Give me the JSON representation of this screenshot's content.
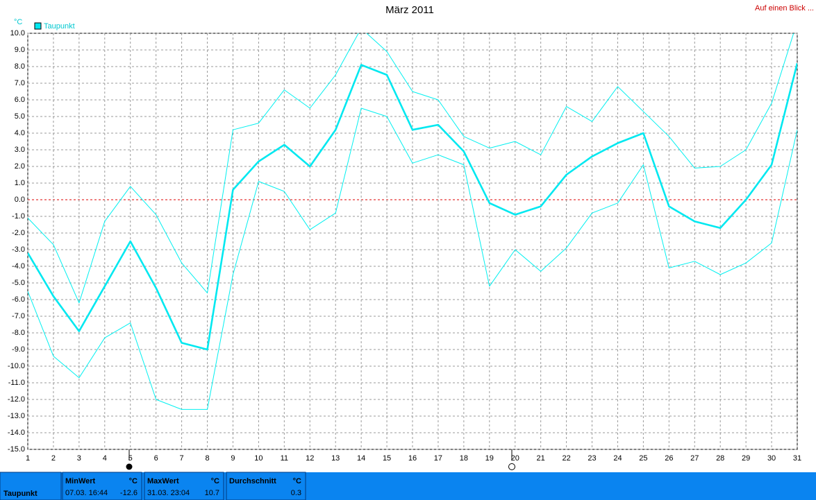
{
  "chart_data": {
    "type": "line",
    "title": "März 2011",
    "ylabel": "°C",
    "link": "Auf einen Blick ...",
    "x": [
      1,
      2,
      3,
      4,
      5,
      6,
      7,
      8,
      9,
      10,
      11,
      12,
      13,
      14,
      15,
      16,
      17,
      18,
      19,
      20,
      21,
      22,
      23,
      24,
      25,
      26,
      27,
      28,
      29,
      30,
      31
    ],
    "xlim": [
      1,
      31
    ],
    "xticks": [
      1,
      2,
      3,
      4,
      5,
      6,
      7,
      8,
      9,
      10,
      11,
      12,
      13,
      14,
      15,
      16,
      17,
      18,
      19,
      20,
      21,
      22,
      23,
      24,
      25,
      26,
      27,
      28,
      29,
      30,
      31
    ],
    "ylim": [
      -15,
      10
    ],
    "yticks": [
      {
        "value": 10,
        "label": "10.0"
      },
      {
        "value": 9,
        "label": "9.0"
      },
      {
        "value": 8,
        "label": "8.0"
      },
      {
        "value": 7,
        "label": "7.0"
      },
      {
        "value": 6,
        "label": "6.0"
      },
      {
        "value": 5,
        "label": "5.0"
      },
      {
        "value": 4,
        "label": "4.0"
      },
      {
        "value": 3,
        "label": "3.0"
      },
      {
        "value": 2,
        "label": "2.0"
      },
      {
        "value": 1,
        "label": "1.0"
      },
      {
        "value": 0,
        "label": "0.0"
      },
      {
        "value": -1,
        "label": "-1.0"
      },
      {
        "value": -2,
        "label": "-2.0"
      },
      {
        "value": -3,
        "label": "-3.0"
      },
      {
        "value": -4,
        "label": "-4.0"
      },
      {
        "value": -5,
        "label": "-5.0"
      },
      {
        "value": -6,
        "label": "-6.0"
      },
      {
        "value": -7,
        "label": "-7.0"
      },
      {
        "value": -8,
        "label": "-8.0"
      },
      {
        "value": -9,
        "label": "-9.0"
      },
      {
        "value": -10,
        "label": "-10.0"
      },
      {
        "value": -11,
        "label": "-11.0"
      },
      {
        "value": -12,
        "label": "-12.0"
      },
      {
        "value": -13,
        "label": "-13.0"
      },
      {
        "value": -14,
        "label": "-14.0"
      },
      {
        "value": -15,
        "label": "-15.0"
      }
    ],
    "grid": true,
    "zero_line_color": "#dd0000",
    "series": [
      {
        "name": "Taupunkt",
        "color": "#00e8f0",
        "values": [
          -3.2,
          -5.8,
          -7.9,
          -5.2,
          -2.5,
          -5.3,
          -8.6,
          -9.0,
          0.6,
          2.3,
          3.3,
          2.0,
          4.2,
          8.1,
          7.5,
          4.2,
          4.5,
          2.9,
          -0.2,
          -0.9,
          -0.4,
          1.5,
          2.6,
          3.4,
          4.0,
          -0.4,
          -1.3,
          -1.7,
          0.0,
          2.1,
          8.2
        ]
      },
      {
        "color": "#00f0f0",
        "values": [
          -1.1,
          -2.7,
          -6.2,
          -1.3,
          0.8,
          -0.9,
          -3.8,
          -5.6,
          4.2,
          4.6,
          6.6,
          5.5,
          7.5,
          10.3,
          8.9,
          6.5,
          6.0,
          3.8,
          3.1,
          3.5,
          2.7,
          5.6,
          4.7,
          6.8,
          5.3,
          3.8,
          1.9,
          2.0,
          3.0,
          5.8,
          10.7
        ]
      },
      {
        "color": "#00f0f0",
        "values": [
          -5.5,
          -9.4,
          -10.7,
          -8.3,
          -7.4,
          -12.0,
          -12.6,
          -12.6,
          -4.5,
          1.1,
          0.5,
          -1.8,
          -0.8,
          5.5,
          5.0,
          2.2,
          2.7,
          2.1,
          -5.2,
          -3.0,
          -4.3,
          -2.9,
          -0.8,
          -0.2,
          2.1,
          -4.1,
          -3.7,
          -4.5,
          -3.8,
          -2.6,
          4.2
        ]
      }
    ]
  },
  "summary": {
    "label": "Taupunkt",
    "columns": [
      {
        "title": "MinWert",
        "unit": "°C",
        "time": "07.03. 16:44",
        "value": -12.6
      },
      {
        "title": "MaxWert",
        "unit": "°C",
        "time": "31.03. 23:04",
        "value": 10.7
      },
      {
        "title": "Durchschnitt",
        "unit": "°C",
        "value": 0.3
      }
    ]
  }
}
